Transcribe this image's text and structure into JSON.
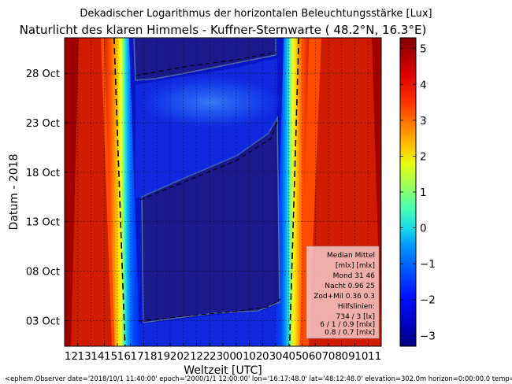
{
  "chart_data": {
    "type": "heatmap",
    "title": "Dekadischer Logarithmus der horizontalen Beleuchtungsstärke [Lux]",
    "subtitle": "Naturlicht des klaren Himmels - Kuffner-Sternwarte ( 48.2°N, 16.3°E)",
    "xlabel": "Weltzeit [UTC]",
    "ylabel": "Datum - 2018",
    "x_tick_labels": [
      "12",
      "13",
      "14",
      "15",
      "16",
      "17",
      "18",
      "19",
      "20",
      "21",
      "22",
      "23",
      "00",
      "01",
      "02",
      "03",
      "04",
      "05",
      "06",
      "07",
      "08",
      "09",
      "10",
      "11"
    ],
    "y_tick_labels": [
      "03 Oct",
      "08 Oct",
      "13 Oct",
      "18 Oct",
      "23 Oct",
      "28 Oct"
    ],
    "y_tick_days": [
      3,
      8,
      13,
      18,
      23,
      28
    ],
    "ylim_days": [
      0.4,
      31.6
    ],
    "colorbar": {
      "ticks": [
        5,
        4,
        3,
        2,
        1,
        0,
        -1,
        -2,
        -3
      ],
      "tick_labels": [
        "5",
        "4",
        "3",
        "2",
        "1",
        "0",
        "−1",
        "−2",
        "−3"
      ],
      "range": [
        -3.3,
        5.3
      ]
    },
    "grid": true,
    "legend_box": {
      "lines": [
        "Median Mittel",
        "[mlx]  [mlx]",
        "Mond   31  46",
        "Nacht 0.96  25",
        "Zod+Mil 0.36  0.3",
        "Hilfslinien:",
        "734 / 3  [lx]",
        "6 /  1 / 0.9 [mlx]",
        "0.8 / 0.7 [mlx]"
      ]
    },
    "sunset_utc_hours": {
      "day_1": 16.58,
      "day_31": 15.75
    },
    "sunrise_utc_hours": {
      "day_1": 29.05,
      "day_31": 29.75
    },
    "footer": "<ephem.Observer date='2018/10/1 11:40:00' epoch='2000/1/1 12:00:00' lon='16:17:48.0' lat='48:12:48.0' elevation=302.0m horizon=0:00:00.0 temp=15.0C pres"
  }
}
